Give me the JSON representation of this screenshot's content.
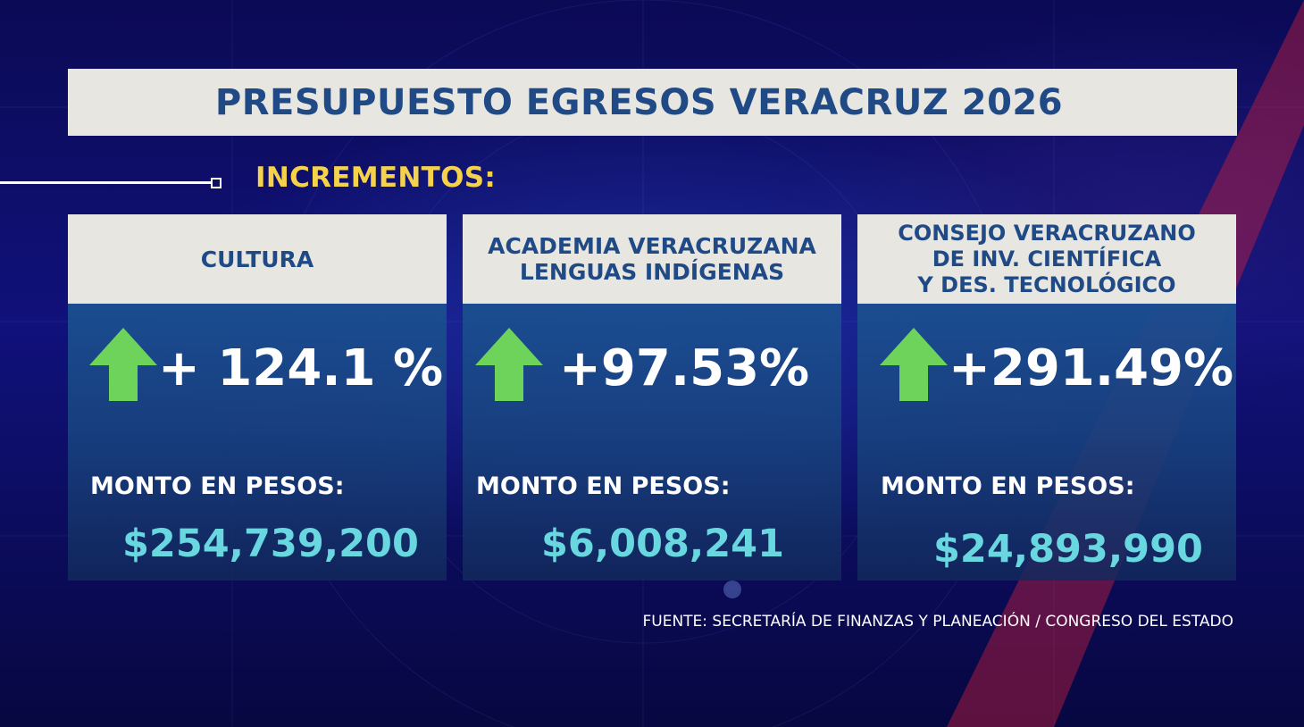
{
  "title": "PRESUPUESTO EGRESOS VERACRUZ 2026",
  "section_label": "INCREMENTOS:",
  "cards": [
    {
      "name": "CULTURA",
      "percent": "+ 124.1 %",
      "amount_label": "MONTO EN PESOS:",
      "amount": "$254,739,200"
    },
    {
      "name": "ACADEMIA VERACRUZANA\nLENGUAS INDÍGENAS",
      "percent": "+97.53%",
      "amount_label": "MONTO EN PESOS:",
      "amount": "$6,008,241"
    },
    {
      "name": "CONSEJO VERACRUZANO\nDE INV. CIENTÍFICA\nY DES. TECNOLÓGICO",
      "percent": "+291.49%",
      "amount_label": "MONTO EN PESOS:",
      "amount": "$24,893,990"
    }
  ],
  "source": "FUENTE: SECRETARÍA DE FINANZAS Y PLANEACIÓN / CONGRESO DEL ESTADO",
  "icons": {
    "increase": "up-arrow-icon"
  },
  "colors": {
    "title_text": "#1f4a86",
    "section_label": "#f6d24a",
    "arrow": "#6ed35a",
    "amount": "#68d7df",
    "panel_light": "#e8e6e1"
  }
}
